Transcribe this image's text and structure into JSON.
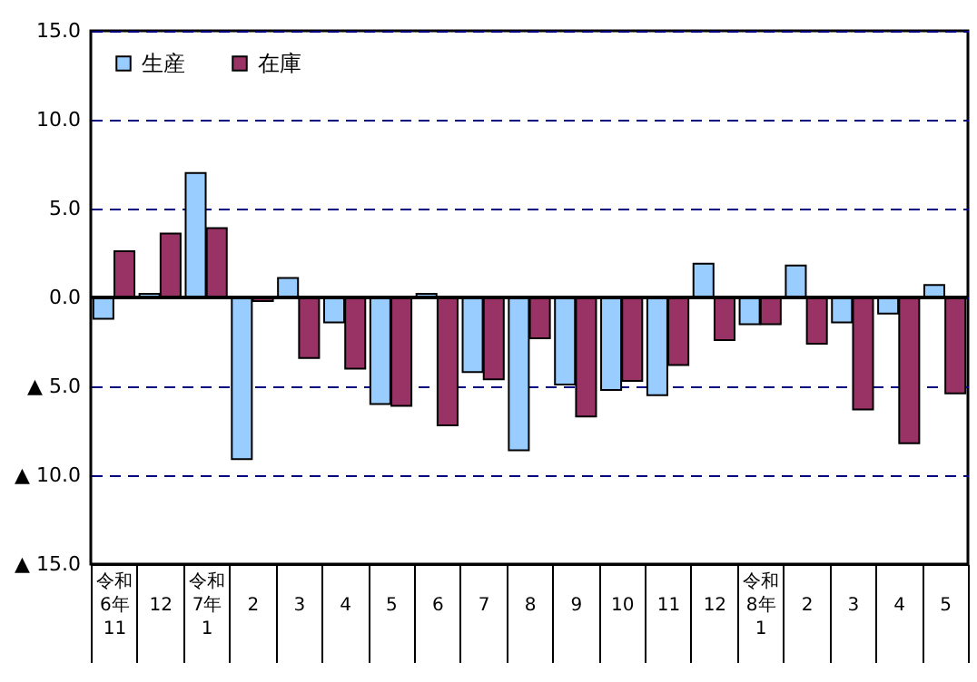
{
  "chart_data": {
    "type": "bar",
    "categories": [
      "令和6年\n11",
      "12",
      "令和7年\n1",
      "2",
      "3",
      "4",
      "5",
      "6",
      "7",
      "8",
      "9",
      "10",
      "11",
      "12",
      "令和8年\n1",
      "2",
      "3",
      "4",
      "5"
    ],
    "series": [
      {
        "name": "生産",
        "color": "#99ccff",
        "values": [
          -1.2,
          0.2,
          7.0,
          -9.1,
          1.1,
          -1.4,
          -6.0,
          0.2,
          -4.2,
          -8.6,
          -4.9,
          -5.2,
          -5.5,
          1.9,
          -1.5,
          1.8,
          -1.4,
          -0.9,
          0.7
        ]
      },
      {
        "name": "在庫",
        "color": "#993366",
        "values": [
          2.6,
          3.6,
          3.9,
          -0.2,
          -3.4,
          -4.0,
          -6.1,
          -7.2,
          -4.6,
          -2.3,
          -6.7,
          -4.7,
          -3.8,
          -2.4,
          -1.5,
          -2.6,
          -6.3,
          -8.2,
          -5.4
        ]
      }
    ],
    "ylim": [
      -15,
      15
    ],
    "yticks": [
      {
        "value": -15,
        "label": "▲ 15.0"
      },
      {
        "value": -10,
        "label": "▲ 10.0"
      },
      {
        "value": -5,
        "label": "▲ 5.0"
      },
      {
        "value": 0,
        "label": "0.0"
      },
      {
        "value": 5,
        "label": "5.0"
      },
      {
        "value": 10,
        "label": "10.0"
      },
      {
        "value": 15,
        "label": "15.0"
      }
    ],
    "grid": "y",
    "legend": "top left"
  }
}
